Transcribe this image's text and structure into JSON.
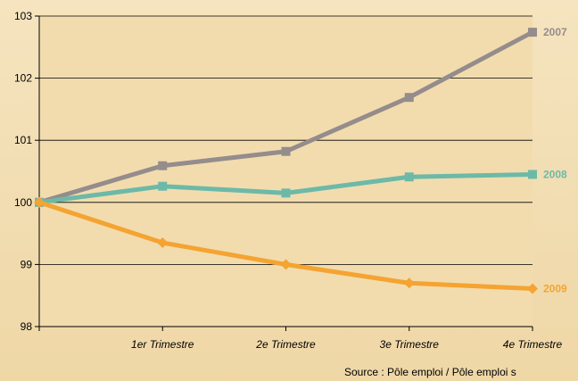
{
  "chart_data": {
    "type": "line",
    "categories": [
      "",
      "1er Trimestre",
      "2e Trimestre",
      "3e Trimestre",
      "4e Trimestre"
    ],
    "ylim": [
      98,
      103
    ],
    "yticks": [
      98,
      99,
      100,
      101,
      102,
      103
    ],
    "grid": true,
    "legend": "inline-right",
    "series": [
      {
        "name": "2007",
        "color": "#958c8c",
        "marker": "square",
        "values": [
          100,
          100.59,
          100.82,
          101.69,
          102.74
        ]
      },
      {
        "name": "2008",
        "color": "#6db9a8",
        "marker": "square",
        "values": [
          100,
          100.26,
          100.15,
          100.41,
          100.45
        ]
      },
      {
        "name": "2009",
        "color": "#f5a331",
        "marker": "diamond",
        "values": [
          100,
          99.35,
          99.0,
          98.7,
          98.61
        ]
      }
    ]
  },
  "source": "Source : Pôle emploi / Pôle emploi s"
}
